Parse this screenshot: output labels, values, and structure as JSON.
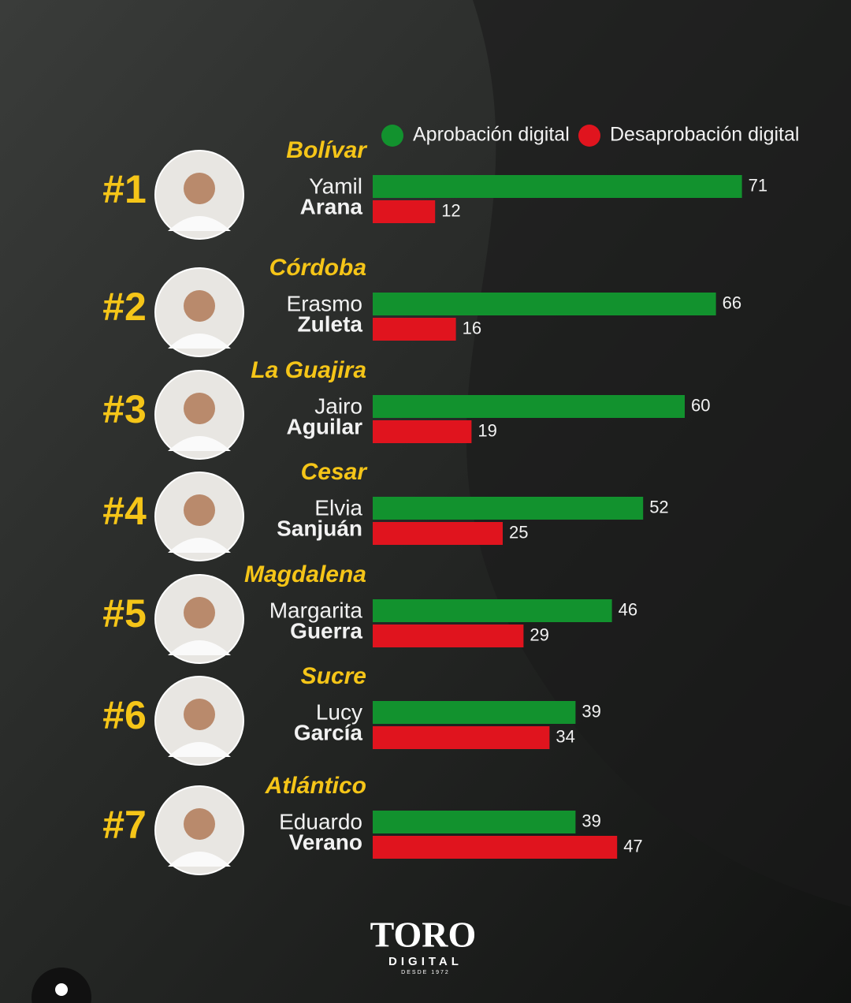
{
  "chart_data": {
    "type": "bar",
    "orientation": "horizontal",
    "candidates": [
      {
        "rank": "#1",
        "region": "Bolívar",
        "first_name": "Yamil",
        "last_name": "Arana"
      },
      {
        "rank": "#2",
        "region": "Córdoba",
        "first_name": "Erasmo",
        "last_name": "Zuleta"
      },
      {
        "rank": "#3",
        "region": "La Guajira",
        "first_name": "Jairo",
        "last_name": "Aguilar"
      },
      {
        "rank": "#4",
        "region": "Cesar",
        "first_name": "Elvia",
        "last_name": "Sanjuán"
      },
      {
        "rank": "#5",
        "region": "Magdalena",
        "first_name": "Margarita",
        "last_name": "Guerra"
      },
      {
        "rank": "#6",
        "region": "Sucre",
        "first_name": "Lucy",
        "last_name": "García"
      },
      {
        "rank": "#7",
        "region": "Atlántico",
        "first_name": "Eduardo",
        "last_name": "Verano"
      }
    ],
    "series": [
      {
        "name": "Aprobación digital",
        "color": "#12922e",
        "values": [
          71,
          66,
          60,
          52,
          46,
          39,
          39
        ]
      },
      {
        "name": "Desaprobación digital",
        "color": "#e0141e",
        "values": [
          12,
          16,
          19,
          25,
          29,
          34,
          47
        ]
      }
    ]
  },
  "logo": {
    "name": "TORO",
    "sub": "DIGITAL",
    "since": "DESDE 1972"
  }
}
